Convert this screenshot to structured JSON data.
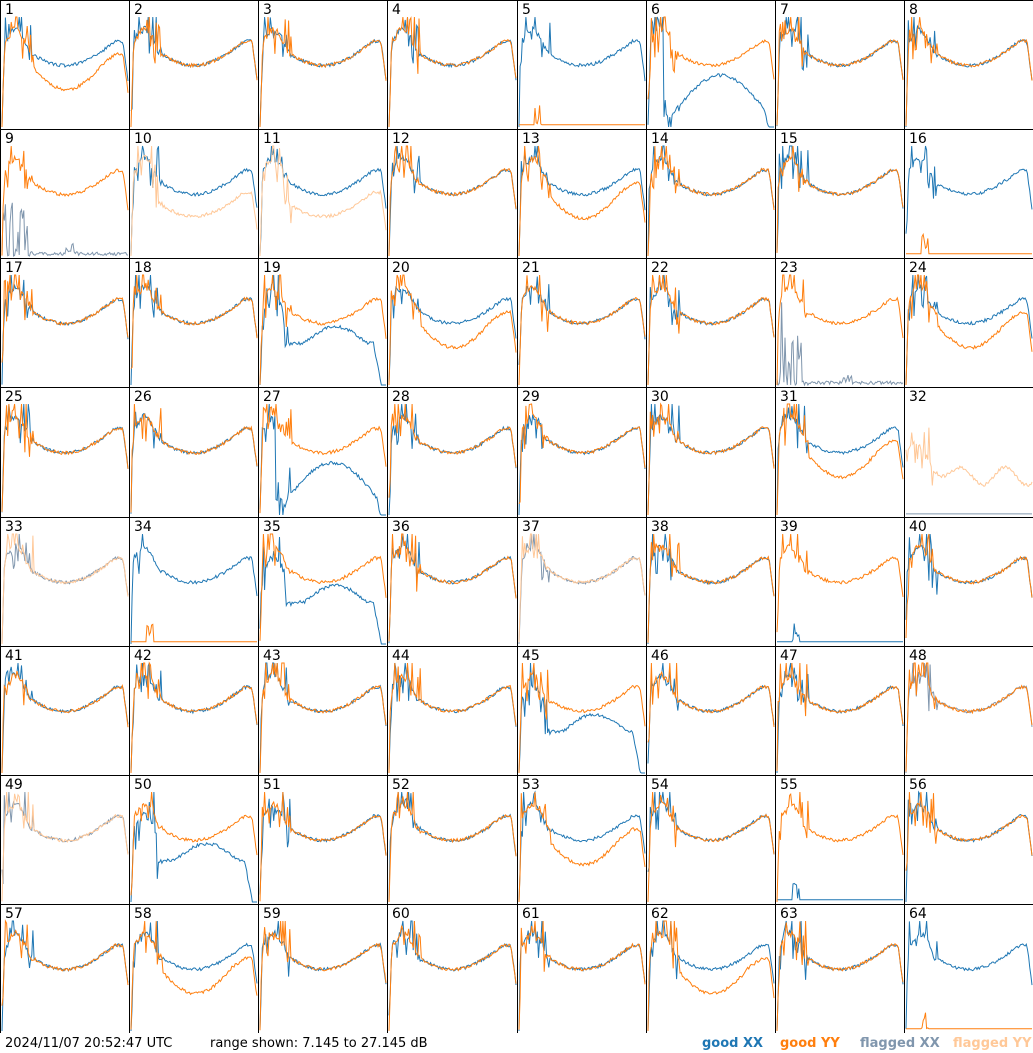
{
  "chart_data": {
    "type": "line",
    "layout": "small-multiples grid 8x8",
    "panels": [
      "1",
      "2",
      "3",
      "4",
      "5",
      "6",
      "7",
      "8",
      "9",
      "10",
      "11",
      "12",
      "13",
      "14",
      "15",
      "16",
      "17",
      "18",
      "19",
      "20",
      "21",
      "22",
      "23",
      "24",
      "25",
      "26",
      "27",
      "28",
      "29",
      "30",
      "31",
      "32",
      "33",
      "34",
      "35",
      "36",
      "37",
      "38",
      "39",
      "40",
      "41",
      "42",
      "43",
      "44",
      "45",
      "46",
      "47",
      "48",
      "49",
      "50",
      "51",
      "52",
      "53",
      "54",
      "55",
      "56",
      "57",
      "58",
      "59",
      "60",
      "61",
      "62",
      "63",
      "64"
    ],
    "ylim": [
      7.145,
      27.145
    ],
    "y_units": "dB",
    "series_styles": {
      "good_xx": "#1f77b4",
      "good_yy": "#ff7f0e",
      "flagged_xx": "#8096ad",
      "flagged_yy": "#ffc898"
    },
    "panel_shapes": {
      "1": [
        "normal",
        "low"
      ],
      "2": [
        "normal",
        "normal"
      ],
      "3": [
        "normal",
        "normal"
      ],
      "4": [
        "normal",
        "normal"
      ],
      "5": [
        "normal",
        "dead"
      ],
      "6": [
        "deepdip",
        "normal"
      ],
      "7": [
        "normal",
        "normal"
      ],
      "8": [
        "normal",
        "normal"
      ],
      "9": [
        "fdead",
        "normal"
      ],
      "10": [
        "normal",
        "flow"
      ],
      "11": [
        "normal",
        "flow"
      ],
      "12": [
        "normal",
        "normal"
      ],
      "13": [
        "normal",
        "low"
      ],
      "14": [
        "normal",
        "normal"
      ],
      "15": [
        "normal",
        "normal"
      ],
      "16": [
        "normal",
        "dead"
      ],
      "17": [
        "normal",
        "normal"
      ],
      "18": [
        "normal",
        "normal"
      ],
      "19": [
        "lowdip",
        "normal"
      ],
      "20": [
        "normal",
        "low"
      ],
      "21": [
        "normal",
        "normal"
      ],
      "22": [
        "normal",
        "normal"
      ],
      "23": [
        "fdead",
        "normal"
      ],
      "24": [
        "normal",
        "low"
      ],
      "25": [
        "normal",
        "normal"
      ],
      "26": [
        "normal",
        "normal"
      ],
      "27": [
        "deepdip",
        "normal"
      ],
      "28": [
        "normal",
        "normal"
      ],
      "29": [
        "normal",
        "normal"
      ],
      "30": [
        "normal",
        "normal"
      ],
      "31": [
        "normal",
        "low"
      ],
      "32": [
        "flat",
        "fnoisy"
      ],
      "33": [
        "fnormal",
        "fnormal"
      ],
      "34": [
        "normal",
        "dead"
      ],
      "35": [
        "lowdip",
        "normal"
      ],
      "36": [
        "normal",
        "normal"
      ],
      "37": [
        "fnormal",
        "fnormal"
      ],
      "38": [
        "normal",
        "normal"
      ],
      "39": [
        "dead",
        "normal"
      ],
      "40": [
        "normal",
        "normal"
      ],
      "41": [
        "normal",
        "normal"
      ],
      "42": [
        "normal",
        "normal"
      ],
      "43": [
        "normal",
        "normal"
      ],
      "44": [
        "normal",
        "normal"
      ],
      "45": [
        "lowdip",
        "normal"
      ],
      "46": [
        "normal",
        "normal"
      ],
      "47": [
        "normal",
        "normal"
      ],
      "48": [
        "fnormal",
        "normal"
      ],
      "49": [
        "fnormal",
        "fnormal"
      ],
      "50": [
        "lowdip",
        "normal"
      ],
      "51": [
        "normal",
        "normal"
      ],
      "52": [
        "normal",
        "normal"
      ],
      "53": [
        "normal",
        "low"
      ],
      "54": [
        "normal",
        "normal"
      ],
      "55": [
        "dead",
        "normal"
      ],
      "56": [
        "normal",
        "normal"
      ],
      "57": [
        "normal",
        "normal"
      ],
      "58": [
        "normal",
        "low"
      ],
      "59": [
        "normal",
        "normal"
      ],
      "60": [
        "normal",
        "normal"
      ],
      "61": [
        "normal",
        "normal"
      ],
      "62": [
        "normal",
        "low"
      ],
      "63": [
        "normal",
        "normal"
      ],
      "64": [
        "normal",
        "dead"
      ]
    }
  },
  "footer": {
    "timestamp": "2024/11/07 20:52:47 UTC",
    "range": "range shown: 7.145 to 27.145 dB",
    "legend": {
      "good_xx": "good XX",
      "good_yy": "good YY",
      "flagged_xx": "flagged XX",
      "flagged_yy": "flagged YY"
    }
  }
}
